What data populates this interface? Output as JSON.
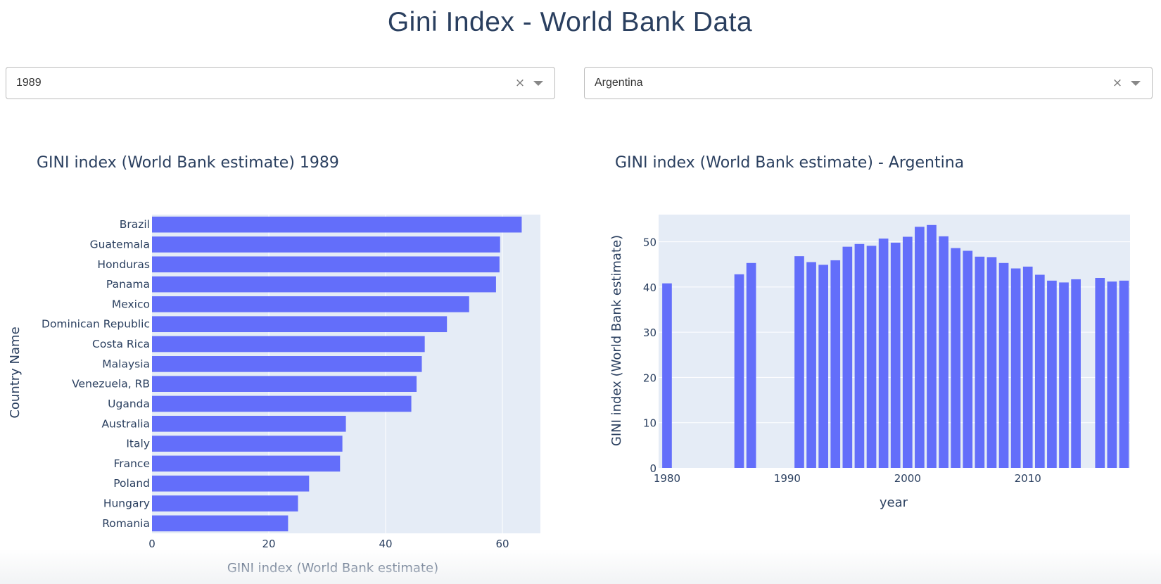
{
  "page": {
    "title": "Gini Index - World Bank Data"
  },
  "dropdowns": {
    "year": {
      "value": "1989",
      "clear_glyph": "×",
      "arrow_icon": "caret-down-icon"
    },
    "country": {
      "value": "Argentina",
      "clear_glyph": "×",
      "arrow_icon": "caret-down-icon"
    }
  },
  "colors": {
    "bar": "#636efa",
    "plot_bg": "#e5ecf6",
    "grid": "#ffffff",
    "text": "#2a3f5f"
  },
  "chart_data": [
    {
      "type": "bar",
      "orientation": "horizontal",
      "title": "GINI index (World Bank estimate) 1989",
      "xlabel": "GINI index (World Bank estimate)",
      "ylabel": "Country Name",
      "xlim": [
        0,
        66.5
      ],
      "xticks": [
        0,
        20,
        40,
        60
      ],
      "grid": true,
      "categories": [
        "Brazil",
        "Guatemala",
        "Honduras",
        "Panama",
        "Mexico",
        "Dominican Republic",
        "Costa Rica",
        "Malaysia",
        "Venezuela, RB",
        "Uganda",
        "Australia",
        "Italy",
        "France",
        "Poland",
        "Hungary",
        "Romania"
      ],
      "values": [
        63.3,
        59.6,
        59.5,
        58.9,
        54.3,
        50.5,
        46.7,
        46.2,
        45.3,
        44.4,
        33.2,
        32.6,
        32.2,
        26.9,
        25.0,
        23.3
      ]
    },
    {
      "type": "bar",
      "orientation": "vertical",
      "title": "GINI index (World Bank estimate) - Argentina",
      "xlabel": "year",
      "ylabel": "GINI index (World Bank estimate)",
      "ylim": [
        0,
        56
      ],
      "yticks": [
        0,
        10,
        20,
        30,
        40,
        50
      ],
      "xlim": [
        1979.3,
        2018.5
      ],
      "xticks": [
        1980,
        1990,
        2000,
        2010
      ],
      "grid": true,
      "x": [
        1980,
        1986,
        1987,
        1991,
        1992,
        1993,
        1994,
        1995,
        1996,
        1997,
        1998,
        1999,
        2000,
        2001,
        2002,
        2003,
        2004,
        2005,
        2006,
        2007,
        2008,
        2009,
        2010,
        2011,
        2012,
        2013,
        2014,
        2016,
        2017,
        2018
      ],
      "values": [
        40.8,
        42.8,
        45.3,
        46.8,
        45.5,
        44.9,
        45.9,
        48.9,
        49.5,
        49.1,
        50.7,
        49.8,
        51.1,
        53.3,
        53.7,
        51.2,
        48.6,
        48.0,
        46.7,
        46.6,
        45.3,
        44.1,
        44.5,
        42.7,
        41.4,
        41.0,
        41.7,
        42.0,
        41.2,
        41.4
      ]
    }
  ]
}
